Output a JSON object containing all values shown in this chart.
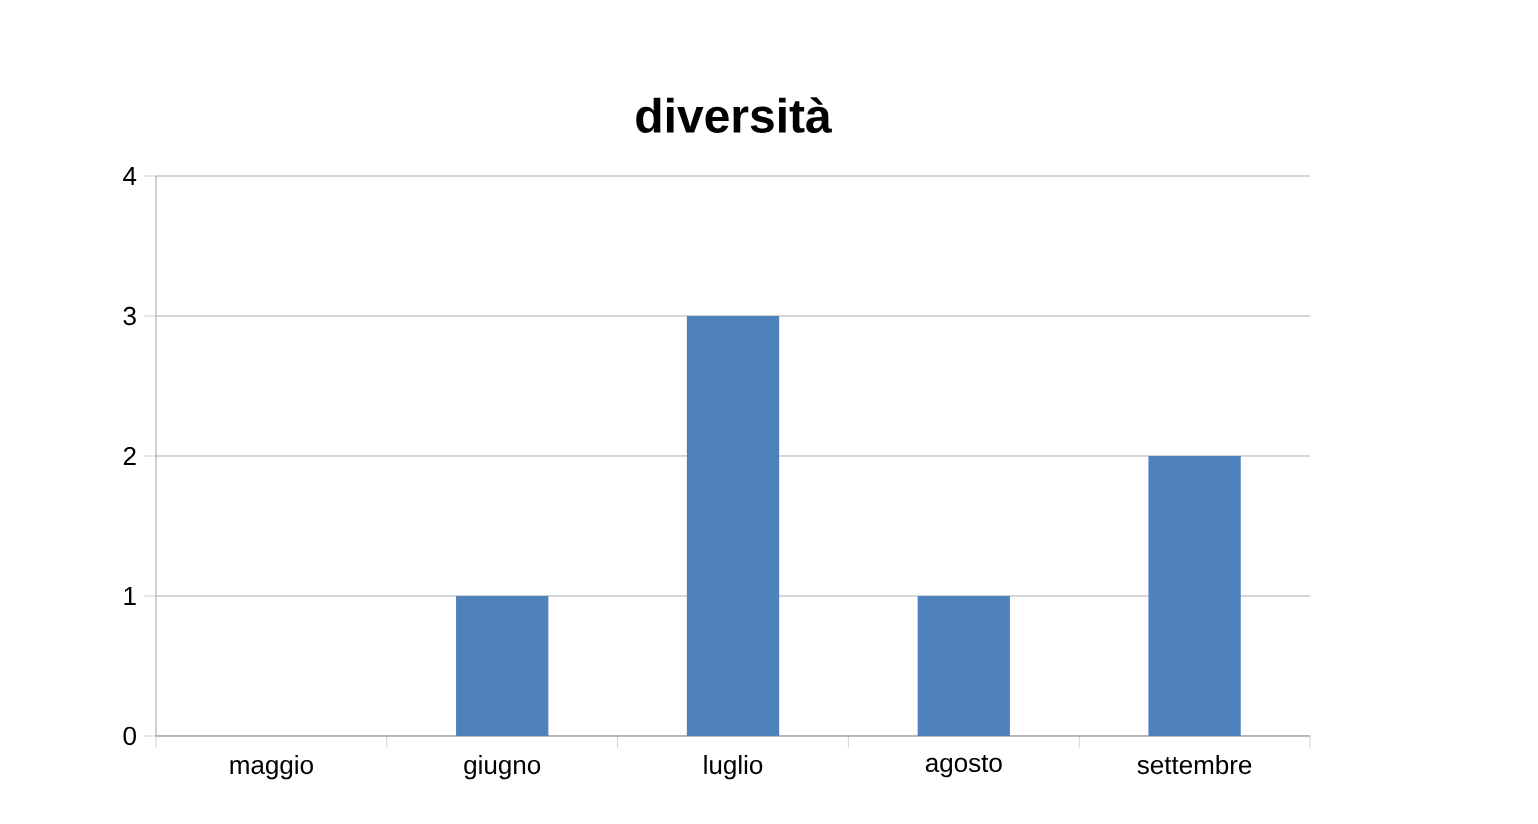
{
  "chart_data": {
    "type": "bar",
    "title": "diversità",
    "categories": [
      "maggio",
      "giugno",
      "luglio",
      "agosto",
      "settembre"
    ],
    "values": [
      0,
      1,
      3,
      1,
      2
    ],
    "color": "#4f81bd",
    "ylim": [
      0,
      4
    ],
    "yticks": [
      0,
      1,
      2,
      3,
      4
    ],
    "grid": "y"
  }
}
